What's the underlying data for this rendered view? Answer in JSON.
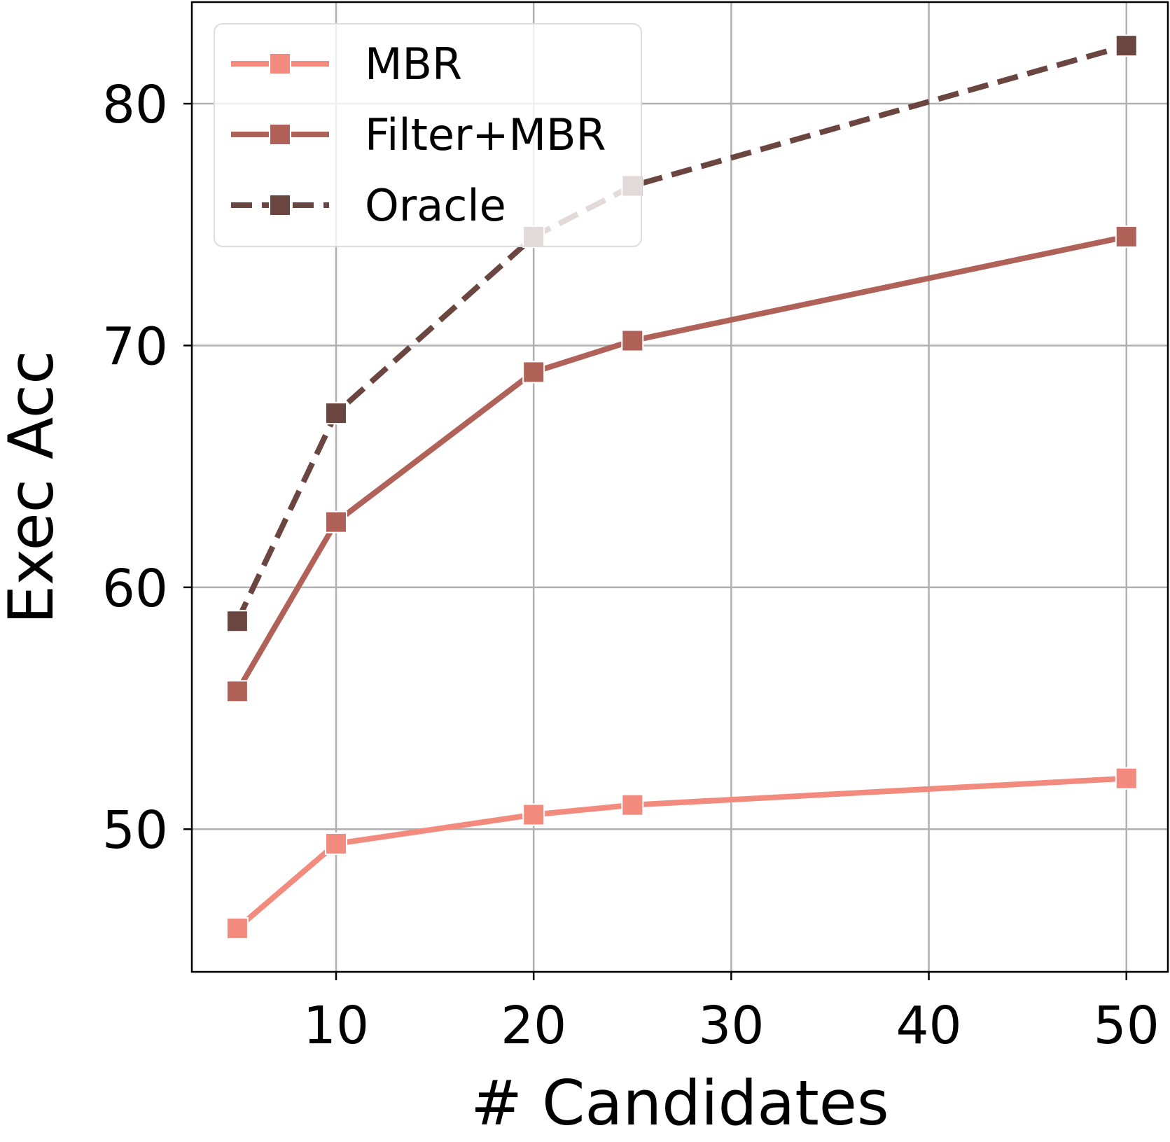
{
  "chart_data": {
    "type": "line",
    "title": "",
    "xlabel": "# Candidates",
    "ylabel": "Exec Acc",
    "xlim": [
      2.7,
      52.1
    ],
    "ylim": [
      44.1,
      84.2
    ],
    "xticks": [
      10,
      20,
      30,
      40,
      50
    ],
    "yticks": [
      50,
      60,
      70,
      80
    ],
    "grid": true,
    "legend_position": "top-left",
    "x": [
      5,
      10,
      20,
      25,
      50
    ],
    "series": [
      {
        "name": "MBR",
        "values": [
          45.9,
          49.4,
          50.6,
          51.0,
          52.1
        ],
        "color": "#f28b7d",
        "dashed": false,
        "marker": "square"
      },
      {
        "name": "Filter+MBR",
        "values": [
          55.7,
          62.7,
          68.9,
          70.2,
          74.5
        ],
        "color": "#b06158",
        "dashed": false,
        "marker": "square"
      },
      {
        "name": "Oracle",
        "values": [
          58.6,
          67.2,
          74.5,
          76.6,
          82.4
        ],
        "color": "#6b4641",
        "dashed": true,
        "marker": "square"
      }
    ]
  }
}
